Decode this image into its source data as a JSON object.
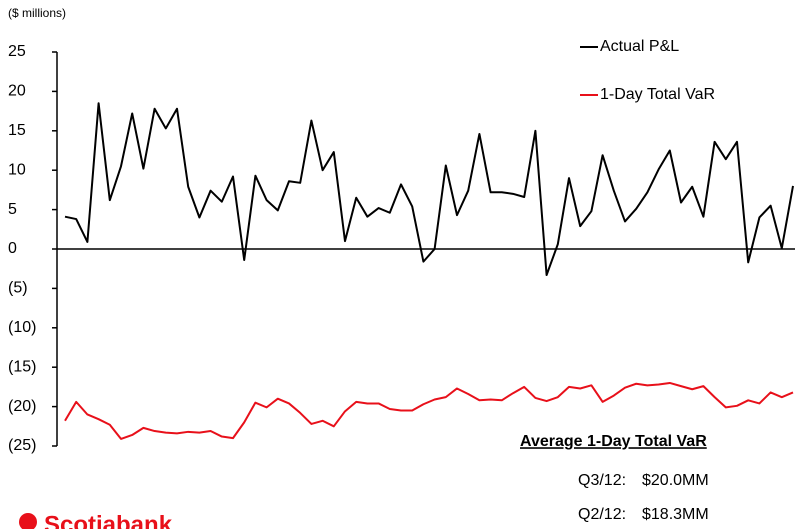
{
  "chart_data": {
    "type": "line",
    "subtitle": "($ millions)",
    "categories": [
      null,
      null,
      null,
      null,
      null,
      null,
      null,
      null,
      null,
      null,
      null,
      null,
      null,
      null,
      null,
      null,
      null,
      null,
      null,
      null,
      null,
      null,
      null,
      null,
      null,
      null,
      null,
      null,
      null,
      null,
      null,
      null,
      null,
      null,
      null,
      null,
      null,
      null,
      null,
      null,
      null,
      null,
      null,
      null,
      null,
      null,
      null,
      null,
      null,
      null,
      null,
      null,
      null,
      null,
      null,
      null,
      null,
      null,
      null,
      null,
      null,
      null,
      null,
      null,
      null,
      null
    ],
    "series": [
      {
        "name": "Actual P&L",
        "color": "#000000",
        "values": [
          4.1,
          3.8,
          0.9,
          18.5,
          6.2,
          10.5,
          17.2,
          10.2,
          17.8,
          15.3,
          17.8,
          7.9,
          4.0,
          7.4,
          6.0,
          9.2,
          -1.4,
          9.3,
          6.2,
          4.9,
          8.6,
          8.4,
          16.3,
          10.0,
          12.3,
          1.0,
          6.5,
          4.1,
          5.2,
          4.6,
          8.2,
          5.4,
          -1.6,
          0.0,
          10.6,
          4.3,
          7.4,
          14.6,
          7.2,
          7.2,
          7.0,
          6.6,
          15.0,
          -3.3,
          0.6,
          9.0,
          2.9,
          4.8,
          11.9,
          7.4,
          3.5,
          5.1,
          7.2,
          10.1,
          12.5,
          5.9,
          7.9,
          4.1,
          13.6,
          11.4,
          13.6,
          -1.7,
          4.0,
          5.5,
          0.1,
          8.0
        ]
      },
      {
        "name": "1-Day Total VaR",
        "color": "#e8101a",
        "values": [
          -21.8,
          -19.4,
          -21.0,
          -21.6,
          -22.3,
          -24.1,
          -23.6,
          -22.7,
          -23.1,
          -23.3,
          -23.4,
          -23.2,
          -23.3,
          -23.1,
          -23.8,
          -24.0,
          -22.0,
          -19.5,
          -20.1,
          -19.0,
          -19.6,
          -20.8,
          -22.2,
          -21.8,
          -22.5,
          -20.6,
          -19.4,
          -19.6,
          -19.6,
          -20.3,
          -20.5,
          -20.5,
          -19.7,
          -19.1,
          -18.8,
          -17.7,
          -18.4,
          -19.2,
          -19.1,
          -19.2,
          -18.3,
          -17.5,
          -18.9,
          -19.3,
          -18.8,
          -17.5,
          -17.7,
          -17.3,
          -19.4,
          -18.6,
          -17.6,
          -17.1,
          -17.3,
          -17.2,
          -17.0,
          -17.4,
          -17.8,
          -17.4,
          -18.8,
          -20.1,
          -19.9,
          -19.2,
          -19.6,
          -18.2,
          -18.8,
          -18.2
        ]
      }
    ],
    "ylim": [
      -25,
      25
    ],
    "yticks": [
      25,
      20,
      15,
      10,
      5,
      0,
      {
        "value": -5,
        "label": "(5)"
      },
      {
        "value": -10,
        "label": "(10)"
      },
      {
        "value": -15,
        "label": "(15)"
      },
      {
        "value": -20,
        "label": "(20)"
      },
      {
        "value": -25,
        "label": "(25)"
      }
    ],
    "legend": "upper right",
    "annotation": {
      "title": "Average 1-Day Total VaR",
      "rows": [
        [
          "Q3/12:",
          "$20.0MM"
        ],
        [
          "Q2/12:",
          "$18.3MM"
        ]
      ]
    },
    "logo": "Scotiabank"
  }
}
